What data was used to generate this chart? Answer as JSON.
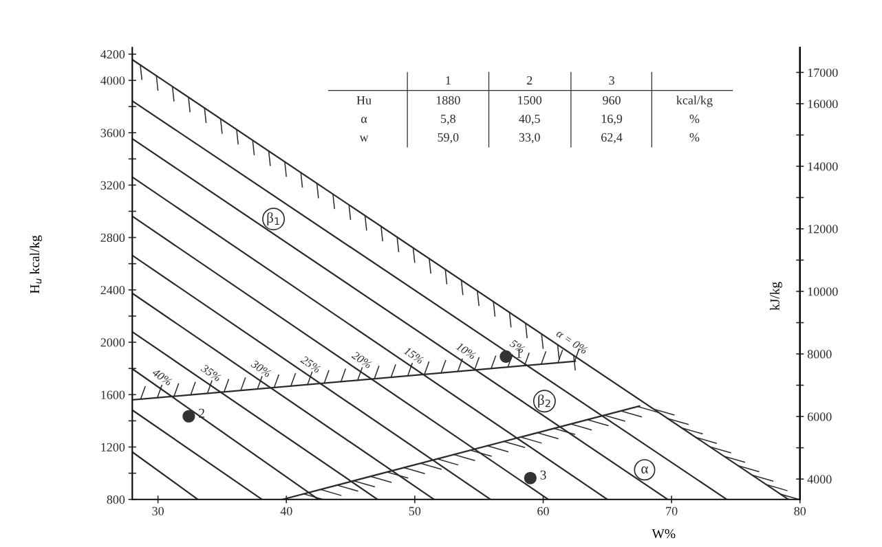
{
  "chart_data": {
    "type": "line",
    "xlabel": "W%",
    "ylabel": "H$_{u}$ kcal/kg",
    "y2label": "kJ/kg",
    "xlim": [
      28,
      80
    ],
    "xticks": [
      30,
      40,
      50,
      60,
      70,
      80
    ],
    "ylim": [
      800,
      4250
    ],
    "yticks": [
      800,
      {
        "value": 1000,
        "label": null
      },
      1200,
      {
        "value": 1400,
        "label": null
      },
      1600,
      {
        "value": 1800,
        "label": null
      },
      2000,
      {
        "value": 2200,
        "label": null
      },
      2400,
      {
        "value": 2600,
        "label": null
      },
      2800,
      {
        "value": 3000,
        "label": null
      },
      3200,
      {
        "value": 3400,
        "label": null
      },
      3600,
      {
        "value": 3800,
        "label": null
      },
      4000,
      4200
    ],
    "y2lim": [
      3349,
      17794
    ],
    "y2ticks": [
      4000,
      {
        "value": 5000,
        "label": null
      },
      6000,
      {
        "value": 7000,
        "label": null
      },
      8000,
      {
        "value": 9000,
        "label": null
      },
      10000,
      {
        "value": 11000,
        "label": null
      },
      12000,
      {
        "value": 13000,
        "label": null
      },
      14000,
      {
        "value": 15000,
        "label": null
      },
      16000,
      17000
    ],
    "series": [
      {
        "name": "α = 0%",
        "x": [
          28,
          79.1
        ],
        "values": [
          4158,
          800
        ],
        "color": "#2b2b2b"
      },
      {
        "name": "5%",
        "x": [
          28,
          74.3
        ],
        "values": [
          3843,
          800
        ],
        "color": "#2b2b2b"
      },
      {
        "name": "10%",
        "x": [
          28,
          69.7
        ],
        "values": [
          3554,
          800
        ],
        "color": "#2b2b2b"
      },
      {
        "name": "15%",
        "x": [
          28,
          65.0
        ],
        "values": [
          3261,
          800
        ],
        "color": "#2b2b2b"
      },
      {
        "name": "20%",
        "x": [
          28,
          60.4
        ],
        "values": [
          2962,
          800
        ],
        "color": "#2b2b2b"
      },
      {
        "name": "25%",
        "x": [
          28,
          55.9
        ],
        "values": [
          2663,
          800
        ],
        "color": "#2b2b2b"
      },
      {
        "name": "30%",
        "x": [
          28,
          51.5
        ],
        "values": [
          2374,
          800
        ],
        "color": "#2b2b2b"
      },
      {
        "name": "35%",
        "x": [
          28,
          47.1
        ],
        "values": [
          2080,
          800
        ],
        "color": "#2b2b2b"
      },
      {
        "name": "40%",
        "x": [
          28,
          42.5
        ],
        "values": [
          1797,
          800
        ],
        "color": "#2b2b2b"
      },
      {
        "x": [
          28,
          38.1
        ],
        "values": [
          1482,
          800
        ],
        "color": "#2b2b2b"
      },
      {
        "x": [
          28,
          33.1
        ],
        "values": [
          1162,
          800
        ],
        "color": "#2b2b2b"
      },
      {
        "x": [
          28,
          62.5
        ],
        "values": [
          1560,
          1855
        ],
        "color": "#2b2b2b"
      },
      {
        "x": [
          39.7,
          67.5
        ],
        "values": [
          800,
          1513
        ],
        "color": "#2b2b2b"
      },
      {
        "type": "scatter",
        "x": [
          57.1,
          32.4,
          59.0
        ],
        "values": [
          1891,
          1435,
          963
        ],
        "color": "#333333",
        "marker": "circle"
      }
    ],
    "annotations": [
      "1",
      "2",
      "3",
      "Hu",
      "1880",
      "1500",
      "960",
      "kcal/kg",
      "α",
      "5,8",
      "40,5",
      "16,9",
      "%",
      "w",
      "59,0",
      "33,0",
      "62,4",
      "%",
      {
        "text": "β$_{1}$",
        "x": 39.0,
        "y": 2941
      },
      {
        "text": "β$_{2}$",
        "x": 60.1,
        "y": 1550
      },
      {
        "text": "α",
        "x": 67.9,
        "y": 1026
      },
      {
        "text": "1",
        "x": 57.1,
        "y": 1891
      },
      {
        "text": "2",
        "x": 32.4,
        "y": 1435
      },
      {
        "text": "3",
        "x": 59.0,
        "y": 963
      }
    ]
  }
}
